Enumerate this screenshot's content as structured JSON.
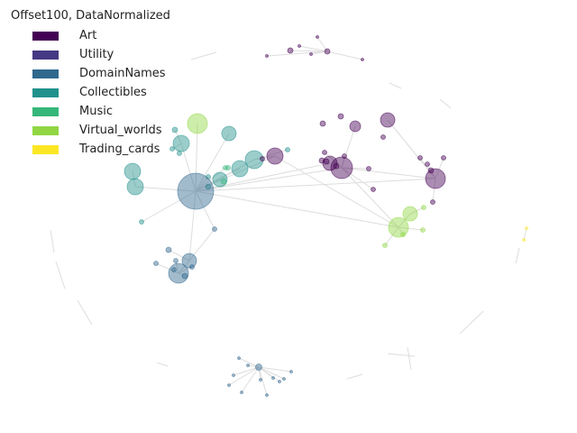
{
  "legend": {
    "title": "Offset100, DataNormalized",
    "items": [
      {
        "label": "Art",
        "color": "#440154"
      },
      {
        "label": "Utility",
        "color": "#443983"
      },
      {
        "label": "DomainNames",
        "color": "#31688e"
      },
      {
        "label": "Collectibles",
        "color": "#21918c"
      },
      {
        "label": "Music",
        "color": "#35b779"
      },
      {
        "label": "Virtual_worlds",
        "color": "#90d743"
      },
      {
        "label": "Trading_cards",
        "color": "#fde725"
      }
    ]
  },
  "network": {
    "edge_color": "#dddddd",
    "node_opacity": 0.45,
    "category_colors": {
      "Art": "#440154",
      "Utility": "#443983",
      "DomainNames": "#31688e",
      "Collectibles": "#21918c",
      "Music": "#35b779",
      "Virtual_worlds": "#90d743",
      "Trading_cards": "#fde725"
    }
  }
}
